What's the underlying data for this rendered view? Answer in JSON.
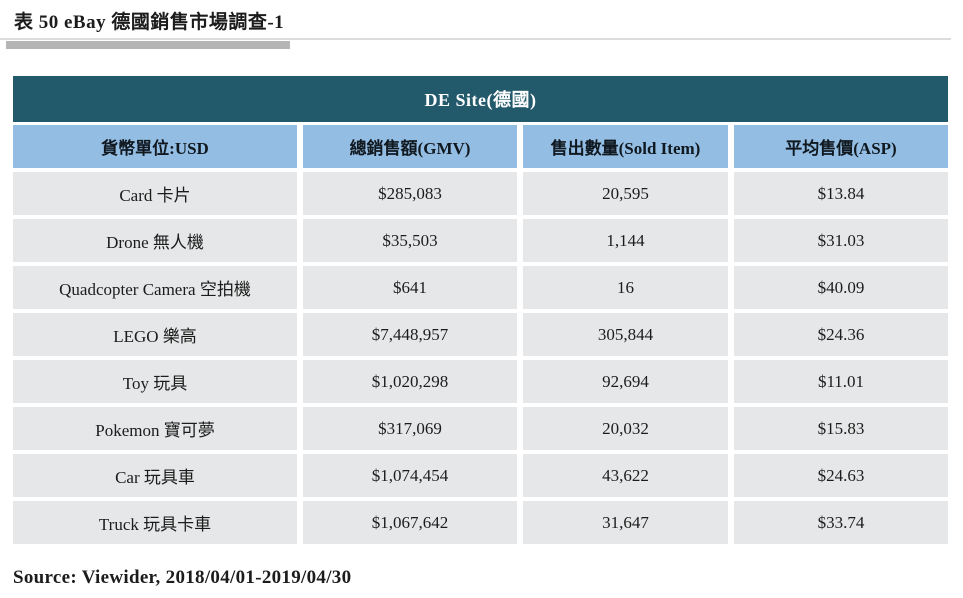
{
  "page": {
    "title": "表 50 eBay 德國銷售市場調查-1",
    "source": "Source: Viewider, 2018/04/01-2019/04/30"
  },
  "table": {
    "banner": "DE Site(德國)",
    "columns": [
      "貨幣單位:USD",
      "總銷售額(GMV)",
      "售出數量(Sold Item)",
      "平均售價(ASP)"
    ],
    "rows": [
      [
        "Card 卡片",
        "$285,083",
        "20,595",
        "$13.84"
      ],
      [
        "Drone 無人機",
        "$35,503",
        "1,144",
        "$31.03"
      ],
      [
        "Quadcopter Camera 空拍機",
        "$641",
        "16",
        "$40.09"
      ],
      [
        "LEGO 樂高",
        "$7,448,957",
        "305,844",
        "$24.36"
      ],
      [
        "Toy 玩具",
        "$1,020,298",
        "92,694",
        "$11.01"
      ],
      [
        "Pokemon 寶可夢",
        "$317,069",
        "20,032",
        "$15.83"
      ],
      [
        "Car 玩具車",
        "$1,074,454",
        "43,622",
        "$24.63"
      ],
      [
        "Truck 玩具卡車",
        "$1,067,642",
        "31,647",
        "$33.74"
      ]
    ],
    "colors": {
      "banner_bg": "#235a6b",
      "banner_text": "#ffffff",
      "header_bg": "#93bde2",
      "row_bg": "#e6e7e8",
      "divider_bar": "#b5b5b5",
      "text": "#1c1c1c"
    }
  },
  "chart_data": {
    "type": "table",
    "title": "表 50 eBay 德國銷售市場調查-1",
    "subtitle": "DE Site(德國)",
    "columns": [
      "貨幣單位:USD",
      "總銷售額(GMV)",
      "售出數量(Sold Item)",
      "平均售價(ASP)"
    ],
    "categories": [
      "Card 卡片",
      "Drone 無人機",
      "Quadcopter Camera 空拍機",
      "LEGO 樂高",
      "Toy 玩具",
      "Pokemon 寶可夢",
      "Car 玩具車",
      "Truck 玩具卡車"
    ],
    "series": [
      {
        "name": "總銷售額(GMV)",
        "values": [
          285083,
          35503,
          641,
          7448957,
          1020298,
          317069,
          1074454,
          1067642
        ]
      },
      {
        "name": "售出數量(Sold Item)",
        "values": [
          20595,
          1144,
          16,
          305844,
          92694,
          20032,
          43622,
          31647
        ]
      },
      {
        "name": "平均售價(ASP)",
        "values": [
          13.84,
          31.03,
          40.09,
          24.36,
          11.01,
          15.83,
          24.63,
          33.74
        ]
      }
    ],
    "annotations": [
      "Source: Viewider, 2018/04/01-2019/04/30"
    ]
  }
}
